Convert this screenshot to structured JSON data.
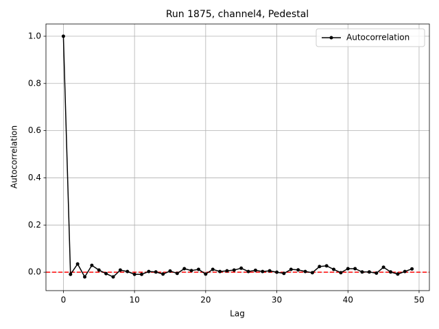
{
  "chart_data": {
    "type": "line",
    "title": "Run 1875, channel4, Pedestal",
    "x_label": "Lag",
    "y_label": "Autocorrelation",
    "x": [
      0,
      1,
      2,
      3,
      4,
      5,
      6,
      7,
      8,
      9,
      10,
      11,
      12,
      13,
      14,
      15,
      16,
      17,
      18,
      19,
      20,
      21,
      22,
      23,
      24,
      25,
      26,
      27,
      28,
      29,
      30,
      31,
      32,
      33,
      34,
      35,
      36,
      37,
      38,
      39,
      40,
      41,
      42,
      43,
      44,
      45,
      46,
      47,
      48,
      49
    ],
    "series": [
      {
        "name": "Autocorrelation",
        "color": "#000000",
        "values": [
          1.0,
          -0.009,
          0.035,
          -0.02,
          0.029,
          0.009,
          -0.006,
          -0.02,
          0.009,
          0.003,
          -0.009,
          -0.009,
          0.003,
          0.001,
          -0.008,
          0.005,
          -0.005,
          0.015,
          0.007,
          0.012,
          -0.008,
          0.012,
          0.003,
          0.006,
          0.009,
          0.017,
          0.003,
          0.008,
          0.003,
          0.006,
          0.0,
          -0.005,
          0.012,
          0.01,
          0.003,
          -0.002,
          0.024,
          0.027,
          0.012,
          -0.002,
          0.015,
          0.015,
          0.001,
          0.001,
          -0.004,
          0.021,
          0.001,
          -0.008,
          0.003,
          0.014
        ]
      }
    ],
    "hline": {
      "value": 0,
      "color": "#ff0000"
    },
    "xlim": [
      -2.45,
      51.45
    ],
    "ylim": [
      -0.078,
      1.052
    ],
    "xticks": [
      0,
      10,
      20,
      30,
      40,
      50
    ],
    "yticks": [
      {
        "value": 0,
        "label": "0.0"
      },
      {
        "value": 0.2,
        "label": "0.2"
      },
      {
        "value": 0.4,
        "label": "0.4"
      },
      {
        "value": 0.6,
        "label": "0.6"
      },
      {
        "value": 0.8,
        "label": "0.8"
      },
      {
        "value": 1.0,
        "label": "1.0"
      }
    ],
    "grid": true,
    "legend": "upper right"
  }
}
